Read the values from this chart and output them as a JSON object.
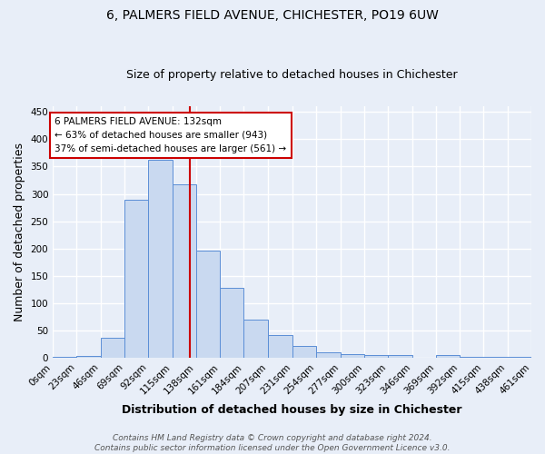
{
  "title_line1": "6, PALMERS FIELD AVENUE, CHICHESTER, PO19 6UW",
  "title_line2": "Size of property relative to detached houses in Chichester",
  "xlabel": "Distribution of detached houses by size in Chichester",
  "ylabel": "Number of detached properties",
  "bar_edges": [
    0,
    23,
    46,
    69,
    92,
    115,
    138,
    161,
    184,
    207,
    231,
    254,
    277,
    300,
    323,
    346,
    369,
    392,
    415,
    438,
    461
  ],
  "bar_heights": [
    3,
    4,
    37,
    290,
    362,
    317,
    197,
    129,
    70,
    42,
    22,
    11,
    7,
    5,
    5,
    0,
    6,
    2,
    3,
    2
  ],
  "bar_facecolor": "#c9d9f0",
  "bar_edgecolor": "#5b8ed6",
  "property_size": 132,
  "vline_color": "#cc0000",
  "annotation_text": "6 PALMERS FIELD AVENUE: 132sqm\n← 63% of detached houses are smaller (943)\n37% of semi-detached houses are larger (561) →",
  "annotation_box_edgecolor": "#cc0000",
  "annotation_box_facecolor": "#ffffff",
  "tick_labels": [
    "0sqm",
    "23sqm",
    "46sqm",
    "69sqm",
    "92sqm",
    "115sqm",
    "138sqm",
    "161sqm",
    "184sqm",
    "207sqm",
    "231sqm",
    "254sqm",
    "277sqm",
    "300sqm",
    "323sqm",
    "346sqm",
    "369sqm",
    "392sqm",
    "415sqm",
    "438sqm",
    "461sqm"
  ],
  "ylim": [
    0,
    460
  ],
  "yticks": [
    0,
    50,
    100,
    150,
    200,
    250,
    300,
    350,
    400,
    450
  ],
  "footer_text": "Contains HM Land Registry data © Crown copyright and database right 2024.\nContains public sector information licensed under the Open Government Licence v3.0.",
  "bg_color": "#e8eef8",
  "plot_bg_color": "#e8eef8",
  "grid_color": "#ffffff",
  "title_fontsize": 10,
  "subtitle_fontsize": 9,
  "axis_label_fontsize": 9,
  "tick_fontsize": 7.5,
  "footer_fontsize": 6.5
}
